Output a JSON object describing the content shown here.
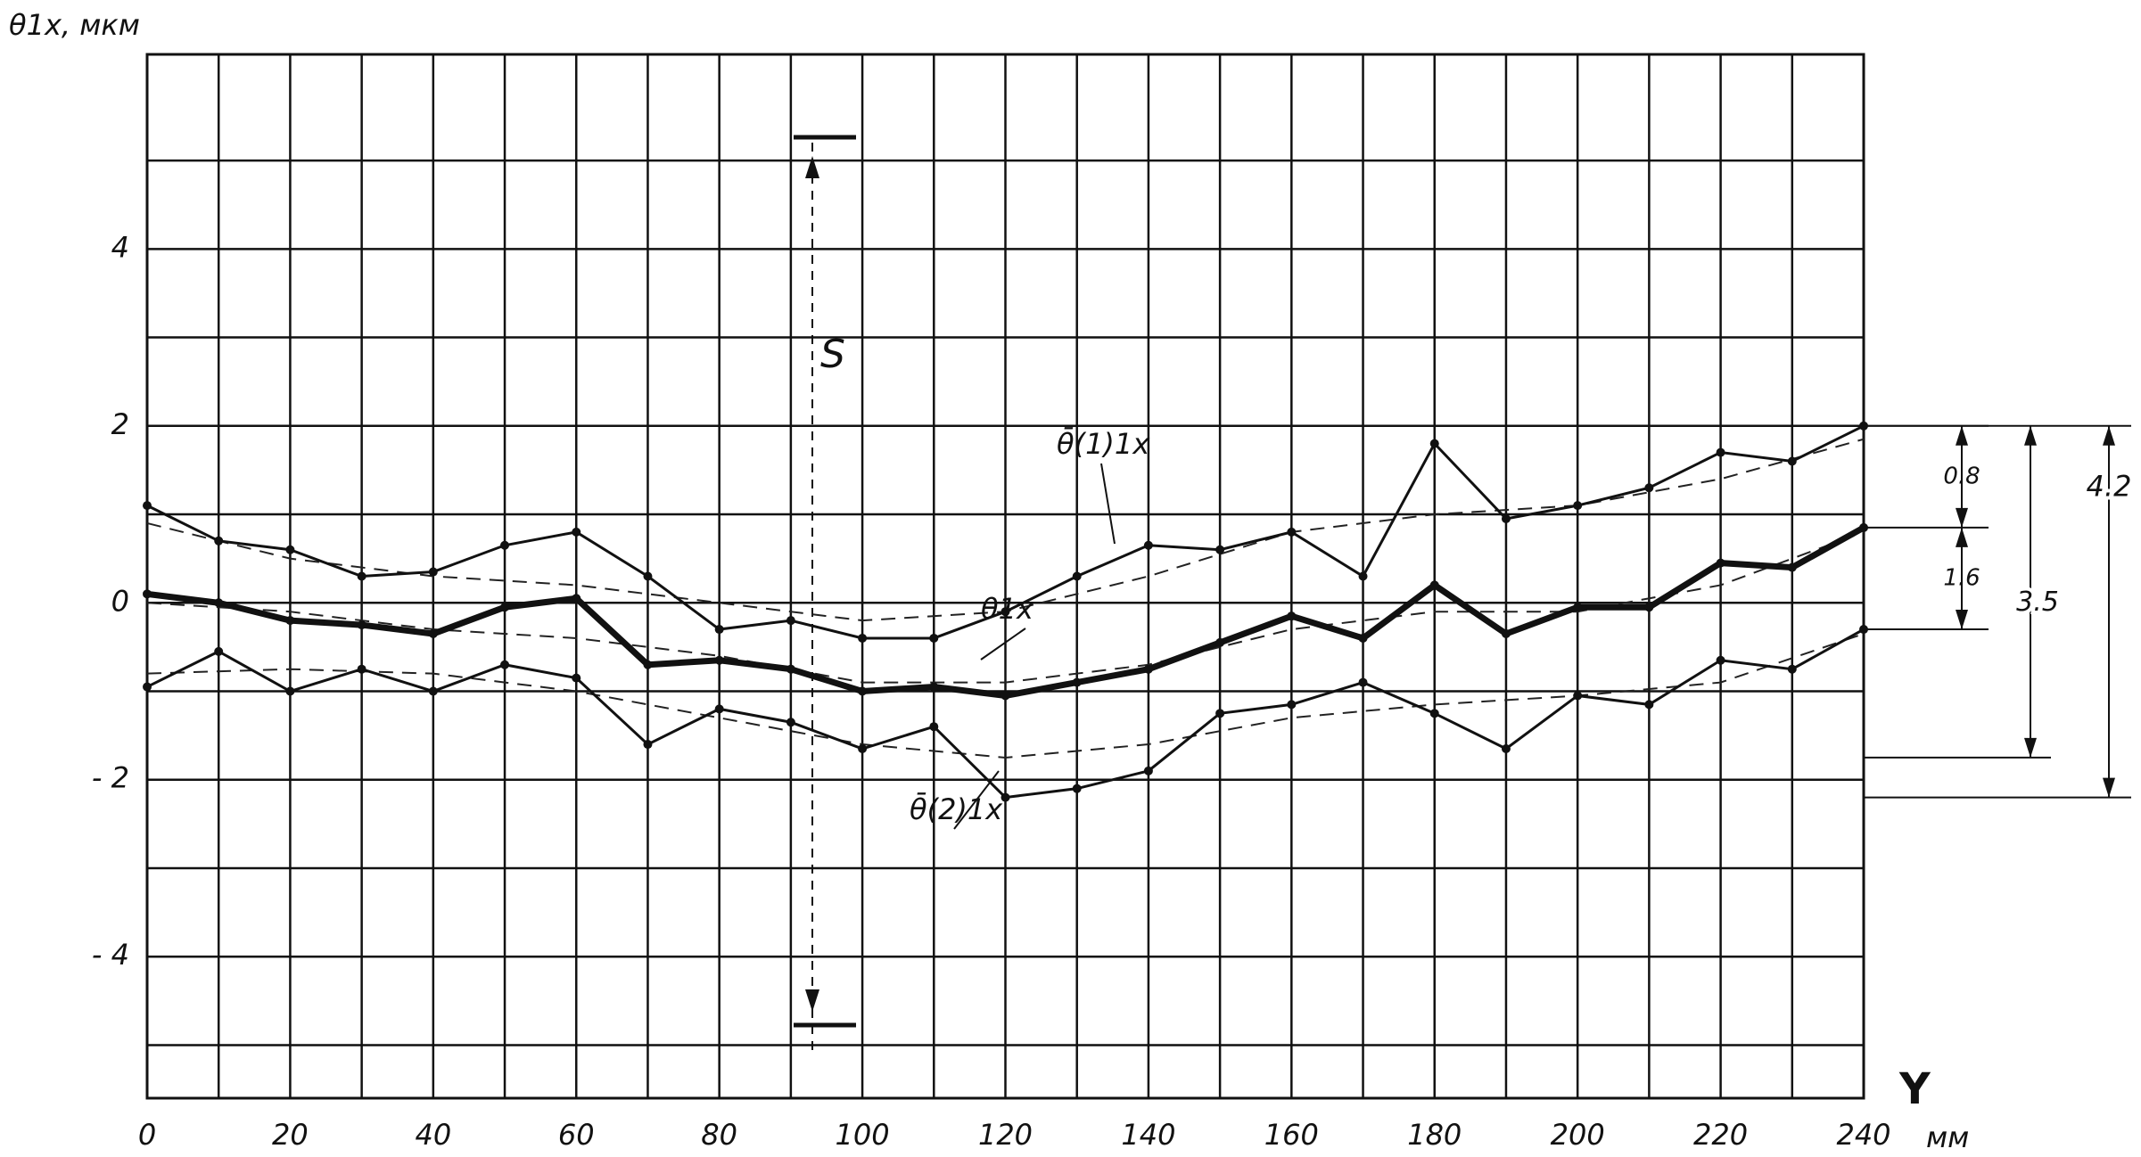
{
  "chart_data": {
    "type": "line",
    "y_label": "θ1x, мкм",
    "x_label": "Y",
    "x_unit": "мм",
    "x": [
      0,
      10,
      20,
      30,
      40,
      50,
      60,
      70,
      80,
      90,
      100,
      110,
      120,
      130,
      140,
      150,
      160,
      170,
      180,
      190,
      200,
      210,
      220,
      230,
      240
    ],
    "series": [
      {
        "name": "θ̄(1)1x",
        "color": "#111",
        "values": [
          1.1,
          0.7,
          0.6,
          0.3,
          0.35,
          0.65,
          0.8,
          0.3,
          -0.3,
          -0.2,
          -0.4,
          -0.4,
          -0.1,
          0.3,
          0.65,
          0.6,
          0.8,
          0.3,
          1.8,
          0.95,
          1.1,
          1.3,
          1.7,
          1.6,
          2.0
        ]
      },
      {
        "name": "θ1x",
        "color": "#111",
        "values": [
          0.1,
          0.0,
          -0.2,
          -0.25,
          -0.35,
          -0.05,
          0.05,
          -0.7,
          -0.65,
          -0.75,
          -1.0,
          -0.95,
          -1.05,
          -0.9,
          -0.75,
          -0.45,
          -0.15,
          -0.4,
          0.2,
          -0.35,
          -0.05,
          -0.05,
          0.45,
          0.4,
          0.85
        ]
      },
      {
        "name": "θ̄(2)1x",
        "color": "#111",
        "values": [
          -0.95,
          -0.55,
          -1.0,
          -0.75,
          -1.0,
          -0.7,
          -0.85,
          -1.6,
          -1.2,
          -1.35,
          -1.65,
          -1.4,
          -2.2,
          -2.1,
          -1.9,
          -1.25,
          -1.15,
          -0.9,
          -1.25,
          -1.65,
          -1.05,
          -1.15,
          -0.65,
          -0.75,
          -0.3
        ]
      }
    ],
    "trend_x": [
      0,
      20,
      40,
      60,
      80,
      100,
      120,
      140,
      160,
      180,
      200,
      220,
      240
    ],
    "trends": [
      [
        0.9,
        0.5,
        0.3,
        0.2,
        0.0,
        -0.2,
        -0.1,
        0.3,
        0.8,
        1.0,
        1.1,
        1.4,
        1.85
      ],
      [
        0.0,
        -0.1,
        -0.3,
        -0.4,
        -0.6,
        -0.9,
        -0.9,
        -0.7,
        -0.3,
        -0.1,
        -0.1,
        0.2,
        0.8
      ],
      [
        -0.8,
        -0.75,
        -0.8,
        -1.0,
        -1.3,
        -1.6,
        -1.75,
        -1.6,
        -1.3,
        -1.15,
        -1.05,
        -0.9,
        -0.35
      ]
    ],
    "xlim": [
      0,
      240
    ],
    "xticks": [
      0,
      20,
      40,
      60,
      80,
      100,
      120,
      140,
      160,
      180,
      200,
      220,
      240
    ],
    "xgrid": [
      0,
      10,
      20,
      30,
      40,
      50,
      60,
      70,
      80,
      90,
      100,
      110,
      120,
      130,
      140,
      150,
      160,
      170,
      180,
      190,
      200,
      210,
      220,
      230,
      240
    ],
    "ylim": [
      -5.6,
      6.2
    ],
    "yticks": [
      4,
      2,
      0,
      {
        "value": -2,
        "label": "- 2"
      },
      {
        "value": -4,
        "label": "- 4"
      }
    ],
    "ygrid": [
      -5,
      -4,
      -3,
      -2,
      -1,
      0,
      1,
      2,
      3,
      4,
      5
    ],
    "annotations": {
      "s": "S",
      "d1": "0.8",
      "d2": "1.6",
      "d3": "3.5",
      "d4": "4.2"
    }
  }
}
